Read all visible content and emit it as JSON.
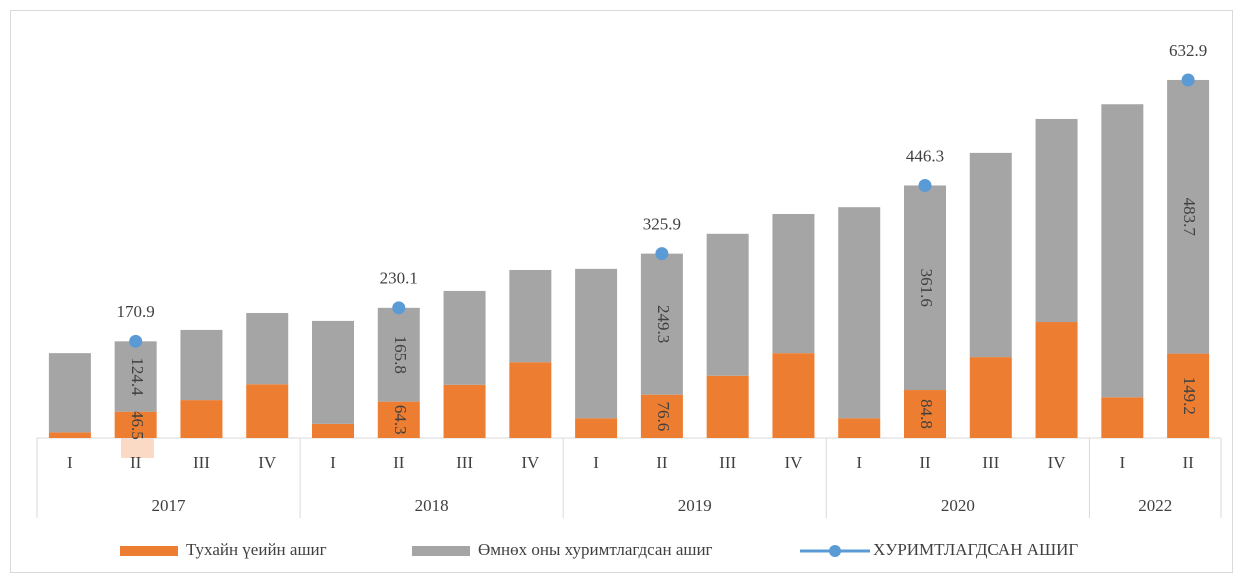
{
  "chart_data": {
    "type": "stacked-bar-line",
    "groups": [
      {
        "name": "2017",
        "categories": [
          "I",
          "II",
          "III",
          "IV"
        ]
      },
      {
        "name": "2018",
        "categories": [
          "I",
          "II",
          "III",
          "IV"
        ]
      },
      {
        "name": "2019",
        "categories": [
          "I",
          "II",
          "III",
          "IV"
        ]
      },
      {
        "name": "2020",
        "categories": [
          "I",
          "II",
          "III",
          "IV"
        ]
      },
      {
        "name": "2022",
        "categories": [
          "I",
          "II"
        ]
      }
    ],
    "series": [
      {
        "name": "Тухайн үеийн ашиг",
        "type": "bar",
        "color": "#ed7d31",
        "values": [
          10,
          46.5,
          67,
          95,
          25,
          64.3,
          94,
          134,
          35,
          76.6,
          110,
          150,
          35,
          84.8,
          143,
          205,
          72,
          149.2
        ],
        "value_labels": [
          null,
          "46.5",
          null,
          null,
          null,
          "64.3",
          null,
          null,
          null,
          "76.6",
          null,
          null,
          null,
          "84.8",
          null,
          null,
          null,
          "149.2"
        ]
      },
      {
        "name": "Өмнөх оны хуримтлагдсан ашиг",
        "type": "bar",
        "color": "#a5a5a5",
        "values": [
          140,
          124.4,
          124,
          126,
          182,
          165.8,
          166,
          163,
          264,
          249.3,
          251,
          246,
          373,
          361.6,
          361,
          359,
          518,
          483.7
        ],
        "value_labels": [
          null,
          "124.4",
          null,
          null,
          null,
          "165.8",
          null,
          null,
          null,
          "249.3",
          null,
          null,
          null,
          "361.6",
          null,
          null,
          null,
          "483.7"
        ]
      },
      {
        "name": "ХУРИМТЛАГДСАН АШИГ",
        "type": "line",
        "color": "#5b9bd5",
        "values": [
          null,
          170.9,
          null,
          null,
          null,
          230.1,
          null,
          null,
          null,
          325.9,
          null,
          null,
          null,
          446.3,
          null,
          null,
          null,
          632.9
        ]
      }
    ],
    "ylim": [
      0,
      700
    ]
  }
}
